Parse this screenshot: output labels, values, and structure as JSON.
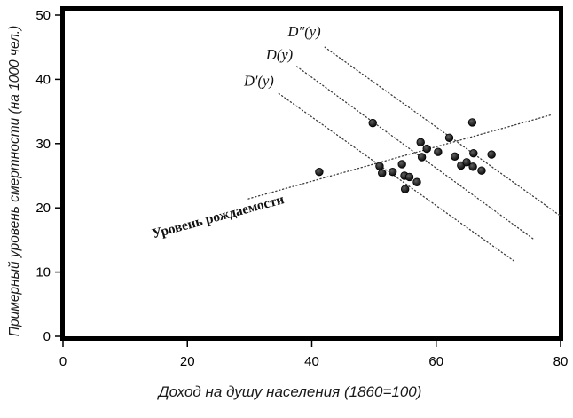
{
  "figure": {
    "background": "#ffffff",
    "frame_color": "#000000",
    "line_color": "#3d3d3d",
    "tick_color": "#000000",
    "point_core": "#606060",
    "point_mid": "#262626",
    "point_edge": "#000000"
  },
  "chart_data": {
    "type": "scatter",
    "title": "",
    "xlabel": "Доход на душу населения (1860=100)",
    "ylabel": "Примерный уровень смертности (на 1000 чел.)",
    "xlim": [
      0,
      80
    ],
    "ylim": [
      0,
      50
    ],
    "x_ticks": [
      0,
      20,
      40,
      60,
      80
    ],
    "y_ticks": [
      0,
      10,
      20,
      30,
      40,
      50
    ],
    "grid": false,
    "legend": "none",
    "points": [
      [
        41.2,
        25.6
      ],
      [
        49.8,
        33.2
      ],
      [
        50.9,
        26.5
      ],
      [
        51.3,
        25.4
      ],
      [
        53.0,
        25.6
      ],
      [
        54.5,
        26.8
      ],
      [
        54.9,
        25.0
      ],
      [
        55.0,
        22.9
      ],
      [
        55.7,
        24.8
      ],
      [
        56.9,
        24.0
      ],
      [
        57.5,
        30.2
      ],
      [
        57.7,
        27.9
      ],
      [
        58.5,
        29.2
      ],
      [
        60.3,
        28.7
      ],
      [
        62.1,
        30.9
      ],
      [
        63.0,
        28.0
      ],
      [
        64.0,
        26.6
      ],
      [
        64.9,
        27.1
      ],
      [
        65.8,
        33.3
      ],
      [
        65.9,
        26.4
      ],
      [
        66.0,
        28.5
      ],
      [
        67.3,
        25.8
      ],
      [
        68.9,
        28.3
      ]
    ],
    "lines": [
      {
        "name": "demand-line-d-double-prime",
        "label": "D″(y)",
        "x1": 42.1,
        "y1": 45.0,
        "x2": 79.9,
        "y2": 18.8,
        "label_x": 38.8,
        "label_y": 46.7,
        "label_rotation": 0,
        "label_bold": false
      },
      {
        "name": "demand-line-d",
        "label": "D(y)",
        "x1": 37.6,
        "y1": 42.0,
        "x2": 75.7,
        "y2": 15.1,
        "label_x": 34.8,
        "label_y": 43.1,
        "label_rotation": 0,
        "label_bold": false
      },
      {
        "name": "demand-line-d-prime",
        "label": "D′(y)",
        "x1": 34.7,
        "y1": 37.8,
        "x2": 72.7,
        "y2": 11.6,
        "label_x": 31.5,
        "label_y": 39.0,
        "label_rotation": 0,
        "label_bold": false
      },
      {
        "name": "birth-rate-line",
        "label": "Уровень рождаемости",
        "x1": 29.8,
        "y1": 21.4,
        "x2": 78.6,
        "y2": 34.5,
        "label_x": 25.1,
        "label_y": 18.0,
        "label_rotation": -15,
        "label_bold": true
      }
    ]
  }
}
